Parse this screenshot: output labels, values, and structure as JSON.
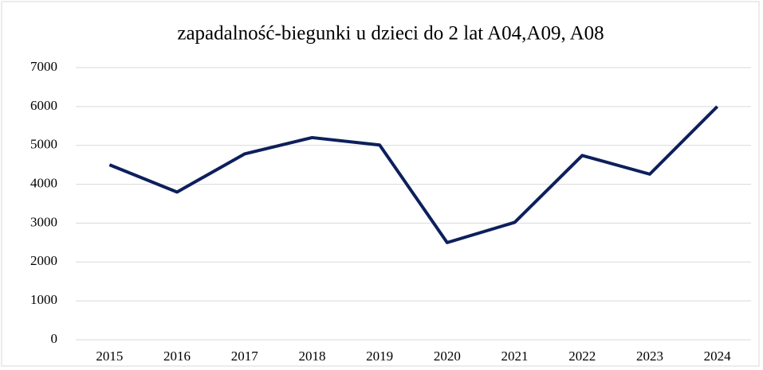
{
  "chart_data": {
    "type": "line",
    "title": "zapadalność-biegunki u dzieci do 2 lat A04,A09, A08",
    "categories": [
      "2015",
      "2016",
      "2017",
      "2018",
      "2019",
      "2020",
      "2021",
      "2022",
      "2023",
      "2024"
    ],
    "series": [
      {
        "color": "#0d1f5c",
        "values": [
          4500,
          3800,
          4780,
          5200,
          5010,
          2500,
          3020,
          4740,
          4260,
          6000
        ]
      }
    ],
    "ylim": [
      0,
      7000
    ],
    "yticks": [
      0,
      1000,
      2000,
      3000,
      4000,
      5000,
      6000,
      7000
    ],
    "grid": true
  }
}
